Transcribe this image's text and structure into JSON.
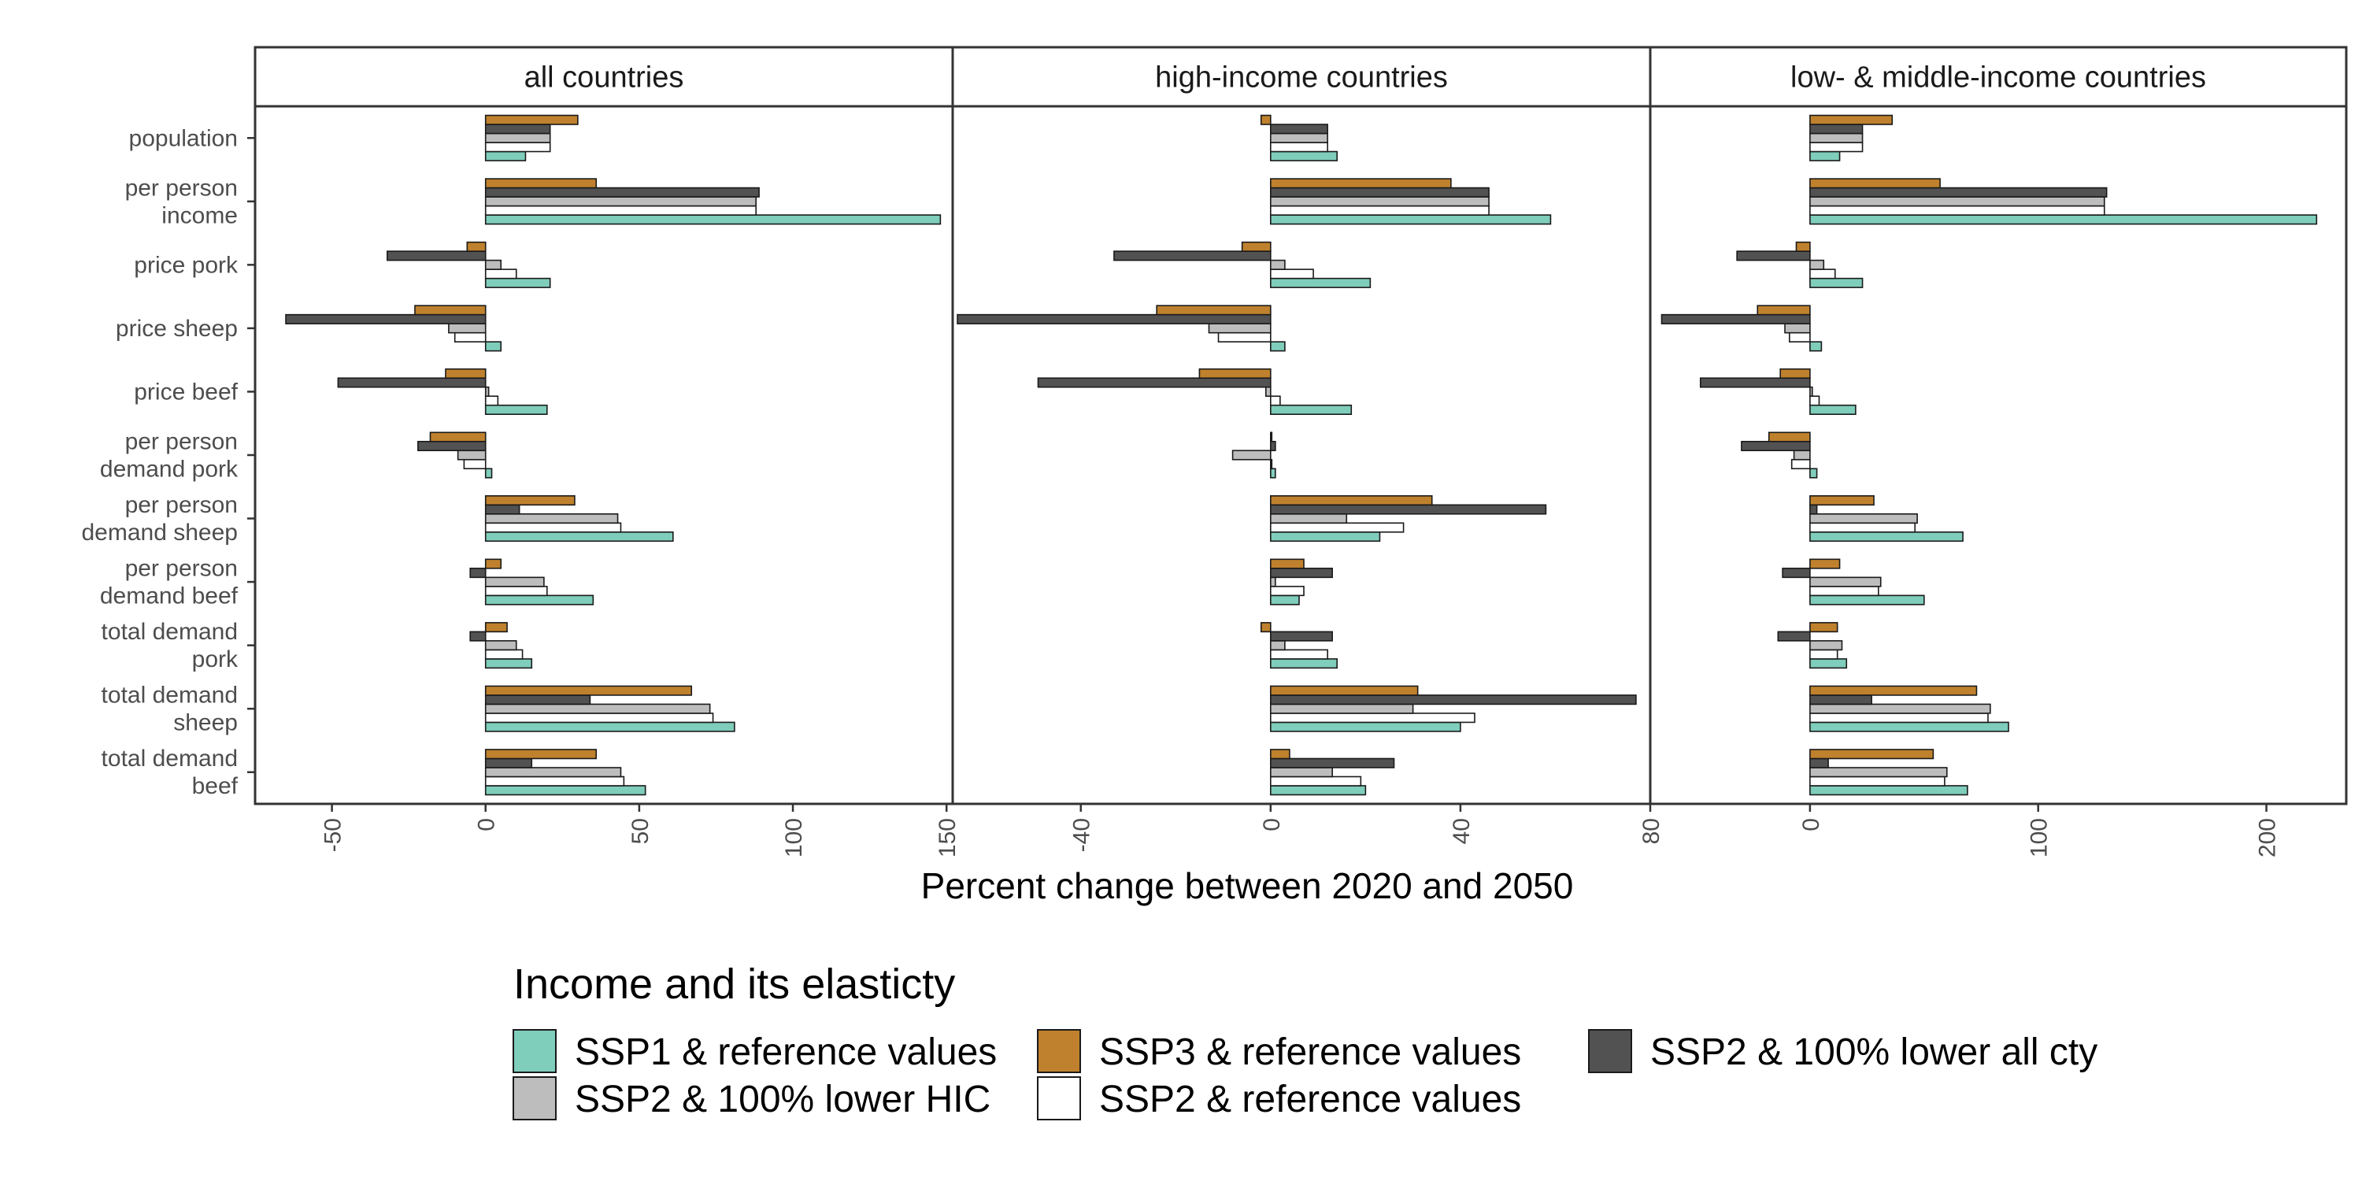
{
  "chart_data": {
    "type": "bar",
    "orientation": "horizontal",
    "xlabel": "Percent change between 2020 and 2050",
    "legend": {
      "title": "Income and its elasticty",
      "placement": "bottom"
    },
    "categories": [
      [
        "population"
      ],
      [
        "per person",
        "income"
      ],
      [
        "price pork"
      ],
      [
        "price sheep"
      ],
      [
        "price beef"
      ],
      [
        "per person",
        "demand pork"
      ],
      [
        "per person",
        "demand sheep"
      ],
      [
        "per person",
        "demand beef"
      ],
      [
        "total demand",
        "pork"
      ],
      [
        "total demand",
        "sheep"
      ],
      [
        "total demand",
        "beef"
      ]
    ],
    "series": [
      {
        "name": "SSP1 & reference values",
        "color": "#7fcdbb"
      },
      {
        "name": "SSP2 & reference values",
        "color": "#ffffff"
      },
      {
        "name": "SSP2 & 100% lower HIC",
        "color": "#bdbdbd"
      },
      {
        "name": "SSP2 & 100% lower all cty",
        "color": "#525252"
      },
      {
        "name": "SSP3 & reference values",
        "color": "#bf812d"
      }
    ],
    "legend_order": [
      0,
      2,
      4,
      1,
      3
    ],
    "panels": [
      {
        "title": "all countries",
        "xlim": [
          -75,
          152
        ],
        "ticks": [
          -50,
          0,
          50,
          100,
          150
        ],
        "values": [
          [
            13,
            21,
            21,
            21,
            30
          ],
          [
            148,
            88,
            88,
            89,
            36
          ],
          [
            21,
            10,
            5,
            -32,
            -6
          ],
          [
            5,
            -10,
            -12,
            -65,
            -23
          ],
          [
            20,
            4,
            1,
            -48,
            -13
          ],
          [
            2,
            -7,
            -9,
            -22,
            -18
          ],
          [
            61,
            44,
            43,
            11,
            29
          ],
          [
            35,
            20,
            19,
            -5,
            5
          ],
          [
            15,
            12,
            10,
            -5,
            7
          ],
          [
            81,
            74,
            73,
            34,
            67
          ],
          [
            52,
            45,
            44,
            15,
            36
          ]
        ]
      },
      {
        "title": "high-income countries",
        "xlim": [
          -67,
          80
        ],
        "ticks": [
          -40,
          0,
          40,
          80
        ],
        "values": [
          [
            14,
            12,
            12,
            12,
            -2
          ],
          [
            59,
            46,
            46,
            46,
            38
          ],
          [
            21,
            9,
            3,
            -33,
            -6
          ],
          [
            3,
            -11,
            -13,
            -66,
            -24
          ],
          [
            17,
            2,
            -1,
            -49,
            -15
          ],
          [
            1,
            0,
            -8,
            1,
            0
          ],
          [
            23,
            28,
            16,
            58,
            34
          ],
          [
            6,
            7,
            1,
            13,
            7
          ],
          [
            14,
            12,
            3,
            13,
            -2
          ],
          [
            40,
            43,
            30,
            77,
            31
          ],
          [
            20,
            19,
            13,
            26,
            4
          ]
        ]
      },
      {
        "title": "low- & middle-income countries",
        "xlim": [
          -70,
          235
        ],
        "ticks": [
          0,
          100,
          200
        ],
        "values": [
          [
            13,
            23,
            23,
            23,
            36
          ],
          [
            222,
            129,
            129,
            130,
            57
          ],
          [
            23,
            11,
            6,
            -32,
            -6
          ],
          [
            5,
            -9,
            -11,
            -65,
            -23
          ],
          [
            20,
            4,
            1,
            -48,
            -13
          ],
          [
            3,
            -8,
            -7,
            -30,
            -18
          ],
          [
            67,
            46,
            47,
            3,
            28
          ],
          [
            50,
            30,
            31,
            -12,
            13
          ],
          [
            16,
            12,
            14,
            -14,
            12
          ],
          [
            87,
            78,
            79,
            27,
            73
          ],
          [
            69,
            59,
            60,
            8,
            54
          ]
        ]
      }
    ]
  }
}
